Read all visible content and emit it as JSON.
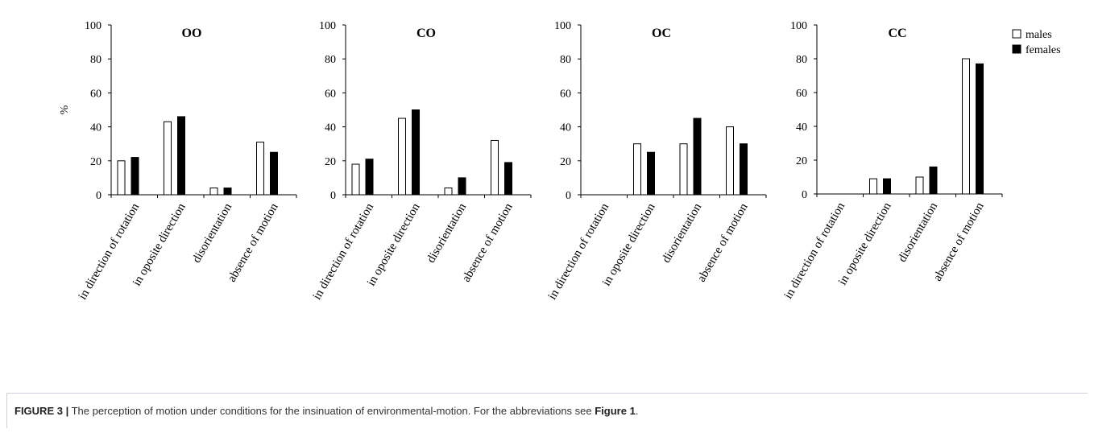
{
  "chart_data": [
    {
      "type": "bar",
      "title": "OO",
      "ylabel": "%",
      "ylim": [
        0,
        100
      ],
      "yticks": [
        "0",
        "20",
        "40",
        "60",
        "80",
        "100"
      ],
      "categories": [
        "in direction of rotation",
        "in oposite direction",
        "disorientation",
        "absence of motion"
      ],
      "series": [
        {
          "name": "males",
          "values": [
            20,
            43,
            4,
            31
          ]
        },
        {
          "name": "females",
          "values": [
            22,
            46,
            4,
            25
          ]
        }
      ]
    },
    {
      "type": "bar",
      "title": "CO",
      "ylabel": "",
      "ylim": [
        0,
        100
      ],
      "yticks": [
        "0",
        "20",
        "40",
        "60",
        "80",
        "100"
      ],
      "categories": [
        "in direction of rotation",
        "in oposite direction",
        "disorientation",
        "absence of motion"
      ],
      "series": [
        {
          "name": "males",
          "values": [
            18,
            45,
            4,
            32
          ]
        },
        {
          "name": "females",
          "values": [
            21,
            50,
            10,
            19
          ]
        }
      ]
    },
    {
      "type": "bar",
      "title": "OC",
      "ylabel": "",
      "ylim": [
        0,
        100
      ],
      "yticks": [
        "0",
        "20",
        "40",
        "60",
        "80",
        "100"
      ],
      "categories": [
        "in direction of rotation",
        "in oposite direction",
        "disorientation",
        "absence of motion"
      ],
      "series": [
        {
          "name": "males",
          "values": [
            0,
            30,
            30,
            40
          ]
        },
        {
          "name": "females",
          "values": [
            0,
            25,
            45,
            30
          ]
        }
      ]
    },
    {
      "type": "bar",
      "title": "CC",
      "ylabel": "",
      "ylim": [
        0,
        100
      ],
      "yticks": [
        "0",
        "20",
        "40",
        "60",
        "80",
        "100"
      ],
      "categories": [
        "in direction of rotation",
        "in oposite direction",
        "disorientation",
        "absence of motion"
      ],
      "series": [
        {
          "name": "males",
          "values": [
            0,
            9,
            10,
            80
          ]
        },
        {
          "name": "females",
          "values": [
            0,
            9,
            16,
            77
          ]
        }
      ],
      "legend": {
        "position": "top-right",
        "entries": [
          "males",
          "females"
        ]
      }
    }
  ],
  "caption": {
    "label": "FIGURE 3 |",
    "text_before": " The perception of motion under conditions for the insinuation of environmental-motion. For the abbreviations see ",
    "ref": "Figure 1",
    "text_after": "."
  }
}
